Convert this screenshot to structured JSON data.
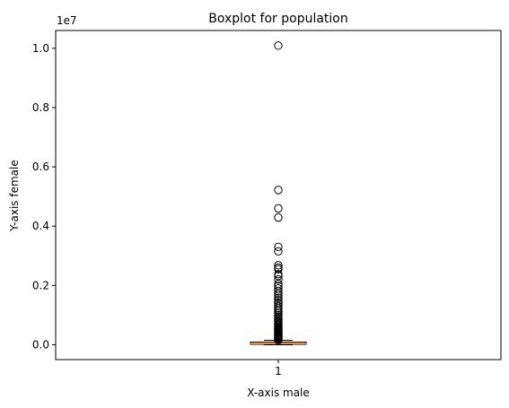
{
  "chart_data": {
    "type": "boxplot",
    "title": "Boxplot for population",
    "xlabel": "X-axis male",
    "ylabel": "Y-axis female",
    "y_scale_label": "1e7",
    "y_scale": 10000000,
    "ylim": [
      -0.05,
      1.06
    ],
    "y_ticks": [
      0.0,
      0.2,
      0.4,
      0.6,
      0.8,
      1.0
    ],
    "y_tick_labels": [
      "0.0",
      "0.2",
      "0.4",
      "0.6",
      "0.8",
      "1.0"
    ],
    "x_ticks": [
      "1"
    ],
    "grid": false,
    "box": {
      "min": 0.0,
      "q1": 0.0015,
      "median": 0.004,
      "q3": 0.009,
      "whisker_high": 0.015
    },
    "outliers": [
      1.009,
      0.522,
      0.46,
      0.429,
      0.33,
      0.315,
      0.268,
      0.26,
      0.255,
      0.238,
      0.232,
      0.22,
      0.205,
      0.198,
      0.19,
      0.18,
      0.172,
      0.165,
      0.158,
      0.15,
      0.143,
      0.137,
      0.13,
      0.124,
      0.118,
      0.112,
      0.106,
      0.1,
      0.095,
      0.09,
      0.085,
      0.08,
      0.076,
      0.072,
      0.068,
      0.064,
      0.06,
      0.057,
      0.054,
      0.051,
      0.048,
      0.045,
      0.042,
      0.04,
      0.037,
      0.035,
      0.033,
      0.031,
      0.029,
      0.027,
      0.025,
      0.023,
      0.021,
      0.019,
      0.017,
      0.016
    ],
    "colors": {
      "median": "#ff7f0e",
      "box": "#000000",
      "outlier": "#000000"
    }
  }
}
